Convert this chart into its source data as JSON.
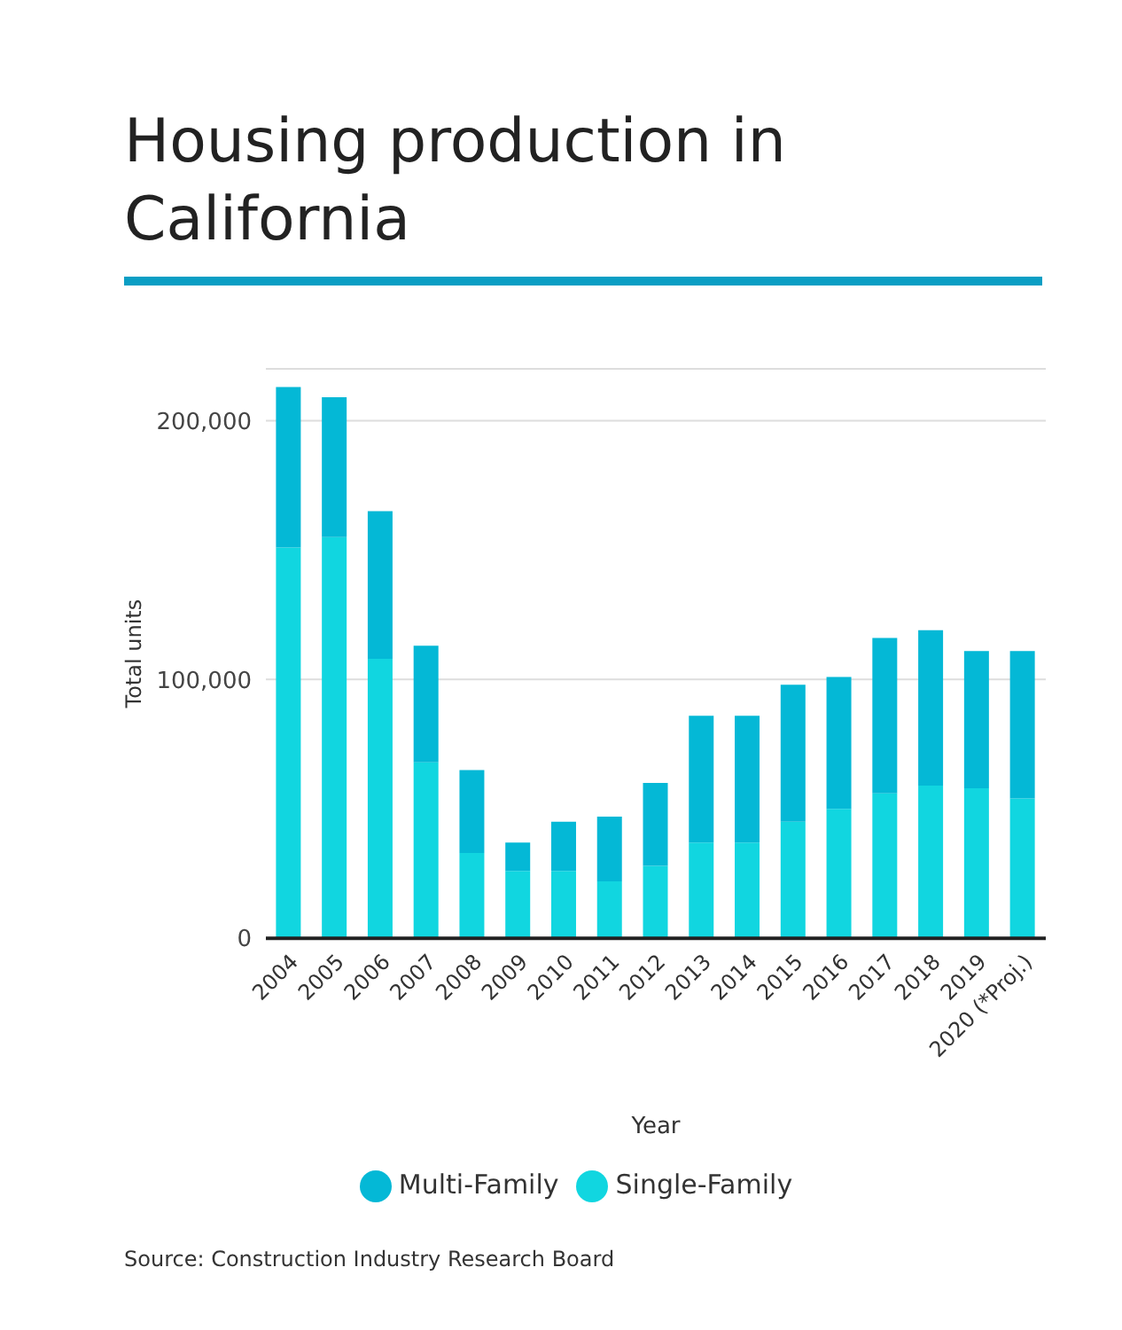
{
  "chart_data": {
    "type": "bar",
    "title": "Housing production in California",
    "xlabel": "Year",
    "ylabel": "Total units",
    "categories": [
      "2004",
      "2005",
      "2006",
      "2007",
      "2008",
      "2009",
      "2010",
      "2011",
      "2012",
      "2013",
      "2014",
      "2015",
      "2016",
      "2017",
      "2018",
      "2019",
      "2020 (*Proj.)"
    ],
    "series": [
      {
        "name": "Single-Family",
        "color": "#11d6e0",
        "values": [
          151000,
          155000,
          108000,
          68000,
          33000,
          26000,
          26000,
          22000,
          28000,
          37000,
          37000,
          45000,
          50000,
          56000,
          59000,
          58000,
          54000
        ]
      },
      {
        "name": "Multi-Family",
        "color": "#04b8d6",
        "values": [
          62000,
          54000,
          57000,
          45000,
          32000,
          11000,
          19000,
          25000,
          32000,
          49000,
          49000,
          53000,
          51000,
          60000,
          60000,
          53000,
          57000
        ]
      }
    ],
    "stacked": true,
    "ylim": [
      0,
      220000
    ],
    "yticks": [
      {
        "value": 0,
        "label": "0"
      },
      {
        "value": 100000,
        "label": "100,000"
      },
      {
        "value": 200000,
        "label": "200,000"
      }
    ],
    "grid": "y",
    "legend": "bottom",
    "annotations": [
      "Source: Construction Industry Research Board"
    ]
  }
}
